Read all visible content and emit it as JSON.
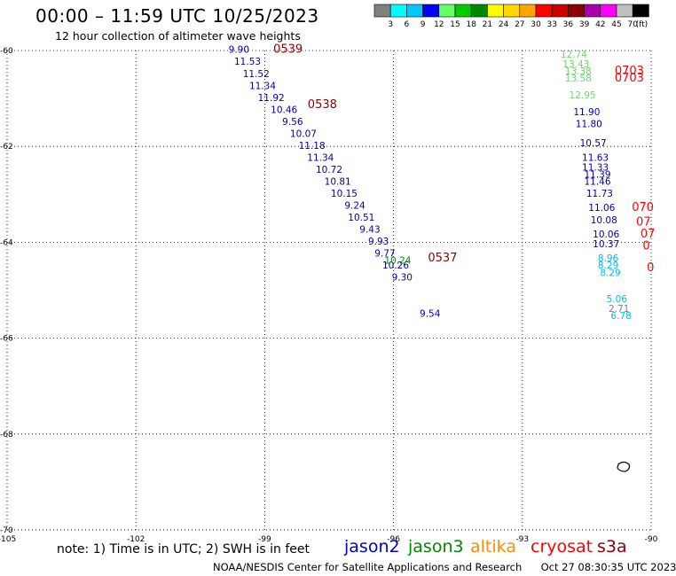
{
  "title": "00:00 – 11:59 UTC 10/25/2023",
  "subtitle": "12 hour collection of altimeter wave heights",
  "colorbar": {
    "colors": [
      "#808080",
      "#00ffff",
      "#00c8ff",
      "#0000ff",
      "#66ff66",
      "#00cc00",
      "#008800",
      "#ffff00",
      "#ffd700",
      "#ffa500",
      "#ff0000",
      "#cc0000",
      "#8b0000",
      "#aa00aa",
      "#ff00ff",
      "#c0c0c0",
      "#000000"
    ],
    "labels": [
      "3",
      "6",
      "9",
      "12",
      "15",
      "18",
      "21",
      "24",
      "27",
      "30",
      "33",
      "36",
      "39",
      "42",
      "45",
      "70",
      "(ft)"
    ]
  },
  "map": {
    "lat_ticks": [
      "-60",
      "-62",
      "-64",
      "-66",
      "-68",
      "-70"
    ],
    "lon_ticks": [
      "-105",
      "-102",
      "-99",
      "-96",
      "-93",
      "-90"
    ]
  },
  "track_times": [
    {
      "label": "0539",
      "color": "#8b0000",
      "lon": -98.8,
      "lat": -60.05
    },
    {
      "label": "0538",
      "color": "#8b0000",
      "lon": -98.0,
      "lat": -61.2
    },
    {
      "label": "0537",
      "color": "#8b0000",
      "lon": -95.2,
      "lat": -64.4
    },
    {
      "label": "0703",
      "color": "#ff0000",
      "lon": -90.85,
      "lat": -60.5
    },
    {
      "label": "0703",
      "color": "#ff0000",
      "lon": -90.85,
      "lat": -60.65
    }
  ],
  "edge_labels": [
    {
      "label": "070",
      "color": "#ff0000",
      "lon": -90.45,
      "lat": -63.35
    },
    {
      "label": "07",
      "color": "#ff0000",
      "lon": -90.35,
      "lat": -63.65
    },
    {
      "label": "07",
      "color": "#ff0000",
      "lon": -90.25,
      "lat": -63.9
    },
    {
      "label": "0",
      "color": "#ff0000",
      "lon": -90.2,
      "lat": -64.15
    },
    {
      "label": "0",
      "color": "#ff0000",
      "lon": -90.1,
      "lat": -64.6
    }
  ],
  "chart_data": {
    "type": "scatter",
    "title": "00:00 – 11:59 UTC 10/25/2023",
    "subtitle": "12 hour collection of altimeter wave heights",
    "xlabel": "",
    "ylabel": "",
    "xlim": [
      -105,
      -90
    ],
    "ylim": [
      -70,
      -60
    ],
    "grid": true,
    "series": [
      {
        "name": "jason2",
        "color": "#0000aa",
        "points": [
          {
            "lon": -99.6,
            "lat": -60.05,
            "v": "9.90"
          },
          {
            "lon": -99.4,
            "lat": -60.3,
            "v": "11.53"
          },
          {
            "lon": -99.2,
            "lat": -60.55,
            "v": "11.52"
          },
          {
            "lon": -99.05,
            "lat": -60.8,
            "v": "11.34"
          },
          {
            "lon": -98.85,
            "lat": -61.05,
            "v": "11.92"
          },
          {
            "lon": -98.55,
            "lat": -61.3,
            "v": "10.46"
          },
          {
            "lon": -98.35,
            "lat": -61.55,
            "v": "9.56"
          },
          {
            "lon": -98.1,
            "lat": -61.8,
            "v": "10.07"
          },
          {
            "lon": -97.9,
            "lat": -62.05,
            "v": "11.18"
          },
          {
            "lon": -97.7,
            "lat": -62.3,
            "v": "11.34"
          },
          {
            "lon": -97.5,
            "lat": -62.55,
            "v": "10.72"
          },
          {
            "lon": -97.3,
            "lat": -62.8,
            "v": "10.81"
          },
          {
            "lon": -97.15,
            "lat": -63.05,
            "v": "10.15"
          },
          {
            "lon": -96.9,
            "lat": -63.3,
            "v": "9.24"
          },
          {
            "lon": -96.75,
            "lat": -63.55,
            "v": "10.51"
          },
          {
            "lon": -96.55,
            "lat": -63.8,
            "v": "9.43"
          },
          {
            "lon": -96.35,
            "lat": -64.05,
            "v": "9.93"
          },
          {
            "lon": -96.2,
            "lat": -64.3,
            "v": "9.77"
          },
          {
            "lon": -95.95,
            "lat": -64.55,
            "v": "10.26"
          },
          {
            "lon": -95.8,
            "lat": -64.8,
            "v": "9.30"
          },
          {
            "lon": -95.15,
            "lat": -65.55,
            "v": "9.54"
          }
        ]
      },
      {
        "name": "jason3",
        "color": "#008800",
        "points": [
          {
            "lon": -95.9,
            "lat": -64.45,
            "v": "10.24"
          }
        ]
      },
      {
        "name": "altika",
        "color": "#ff8c00",
        "points": []
      },
      {
        "name": "cryosat",
        "color": "#ff0000",
        "points": []
      },
      {
        "name": "s3a",
        "color": "#8b0000",
        "points": [
          {
            "lon": -91.8,
            "lat": -60.15,
            "v": "12.74",
            "c": "#66dd66"
          },
          {
            "lon": -91.75,
            "lat": -60.35,
            "v": "13.43",
            "c": "#66dd66"
          },
          {
            "lon": -91.7,
            "lat": -60.5,
            "v": "13.38",
            "c": "#66dd66"
          },
          {
            "lon": -91.7,
            "lat": -60.65,
            "v": "13.58",
            "c": "#66dd66"
          },
          {
            "lon": -91.6,
            "lat": -61.0,
            "v": "12.95",
            "c": "#66dd66"
          },
          {
            "lon": -91.5,
            "lat": -61.35,
            "v": "11.90",
            "c": "#0000aa"
          },
          {
            "lon": -91.45,
            "lat": -61.6,
            "v": "11.80",
            "c": "#0000aa"
          },
          {
            "lon": -91.35,
            "lat": -62.0,
            "v": "10.57",
            "c": "#0000aa"
          },
          {
            "lon": -91.3,
            "lat": -62.3,
            "v": "11.63",
            "c": "#0000aa"
          },
          {
            "lon": -91.3,
            "lat": -62.5,
            "v": "11.33",
            "c": "#0000aa"
          },
          {
            "lon": -91.25,
            "lat": -62.65,
            "v": "11.39",
            "c": "#0000aa"
          },
          {
            "lon": -91.25,
            "lat": -62.8,
            "v": "11.46",
            "c": "#0000aa"
          },
          {
            "lon": -91.2,
            "lat": -63.05,
            "v": "11.73",
            "c": "#0000aa"
          },
          {
            "lon": -91.15,
            "lat": -63.35,
            "v": "11.06",
            "c": "#0000aa"
          },
          {
            "lon": -91.1,
            "lat": -63.6,
            "v": "10.08",
            "c": "#0000aa"
          },
          {
            "lon": -91.05,
            "lat": -63.9,
            "v": "10.06",
            "c": "#0000aa"
          },
          {
            "lon": -91.05,
            "lat": -64.1,
            "v": "10.37",
            "c": "#0000aa"
          },
          {
            "lon": -91.0,
            "lat": -64.4,
            "v": "8.96",
            "c": "#00bbee"
          },
          {
            "lon": -91.0,
            "lat": -64.55,
            "v": "8.29",
            "c": "#00bbee"
          },
          {
            "lon": -90.95,
            "lat": -64.7,
            "v": "8.29",
            "c": "#00bbee"
          },
          {
            "lon": -90.8,
            "lat": -65.25,
            "v": "5.06",
            "c": "#00bbee"
          },
          {
            "lon": -90.75,
            "lat": -65.45,
            "v": "2.71",
            "c": "#808080"
          },
          {
            "lon": -90.7,
            "lat": -65.6,
            "v": "6.78",
            "c": "#00bbee"
          }
        ]
      }
    ]
  },
  "legend": {
    "note": "note: 1) Time is in UTC; 2) SWH is in feet",
    "satellites": [
      {
        "name": "jason2",
        "color": "#0000cc"
      },
      {
        "name": "jason3",
        "color": "#008800"
      },
      {
        "name": "altika",
        "color": "#ff8c00"
      },
      {
        "name": "cryosat",
        "color": "#ff0000"
      },
      {
        "name": "s3a",
        "color": "#8b0000"
      }
    ]
  },
  "footer": {
    "source": "NOAA/NESDIS Center for Satellite Applications and Research",
    "timestamp": "Oct 27 08:30:35 UTC 2023"
  }
}
